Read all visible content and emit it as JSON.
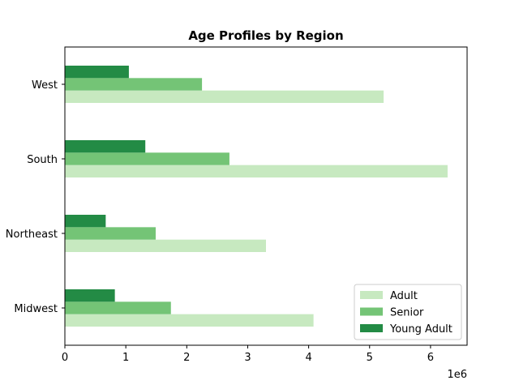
{
  "chart_data": {
    "type": "bar",
    "orientation": "horizontal",
    "title": "Age Profiles by Region",
    "xlabel": "",
    "ylabel": "",
    "x_offset_text": "1e6",
    "xlim": [
      0,
      6600000
    ],
    "x_ticks": [
      0,
      1000000,
      2000000,
      3000000,
      4000000,
      5000000,
      6000000
    ],
    "x_tick_labels": [
      "0",
      "1",
      "2",
      "3",
      "4",
      "5",
      "6"
    ],
    "categories": [
      "Midwest",
      "Northeast",
      "South",
      "West"
    ],
    "series": [
      {
        "name": "Adult",
        "color": "#c7e9c0",
        "values": [
          4080000,
          3300000,
          6280000,
          5230000
        ]
      },
      {
        "name": "Senior",
        "color": "#74c476",
        "values": [
          1740000,
          1490000,
          2700000,
          2250000
        ]
      },
      {
        "name": "Young Adult",
        "color": "#238b45",
        "values": [
          820000,
          670000,
          1320000,
          1050000
        ]
      }
    ],
    "legend_position": "lower-right",
    "grid": false
  }
}
